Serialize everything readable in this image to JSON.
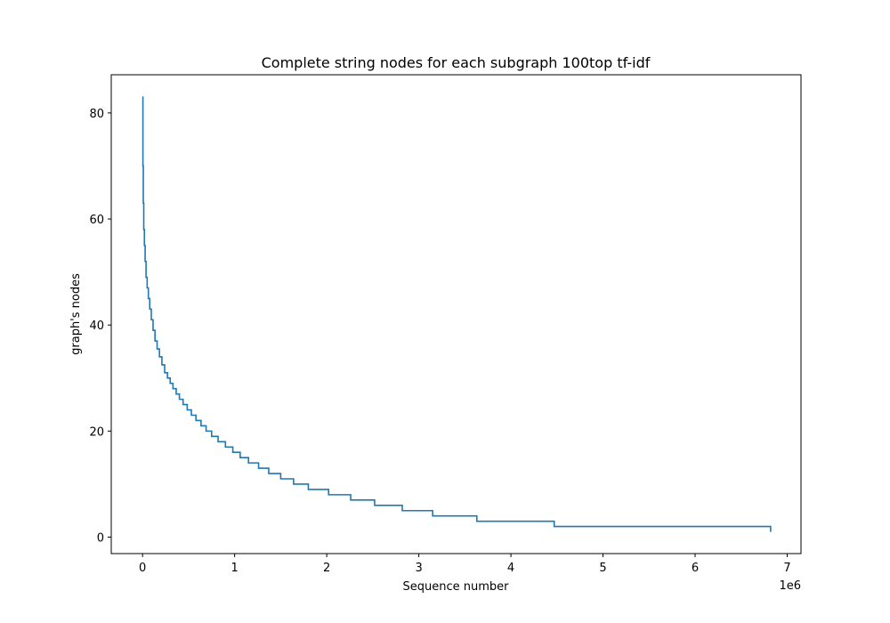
{
  "chart_data": {
    "type": "line",
    "title": "Complete string nodes for each subgraph 100top tf-idf",
    "xlabel": "Sequence number",
    "ylabel": "graph's nodes",
    "x_offset_label": "1e6",
    "xlim": [
      -0.34,
      7.15
    ],
    "ylim": [
      -3.1,
      87.2
    ],
    "xticks": [
      0,
      1,
      2,
      3,
      4,
      5,
      6,
      7
    ],
    "yticks": [
      0,
      20,
      40,
      60,
      80
    ],
    "grid": false,
    "line_color": "#1f77b4",
    "series": [
      {
        "step": "post",
        "x": [
          0,
          0.004,
          0.008,
          0.013,
          0.02,
          0.028,
          0.038,
          0.05,
          0.063,
          0.078,
          0.095,
          0.114,
          0.135,
          0.158,
          0.183,
          0.21,
          0.24,
          0.27,
          0.3,
          0.33,
          0.365,
          0.4,
          0.44,
          0.485,
          0.53,
          0.58,
          0.635,
          0.69,
          0.75,
          0.82,
          0.9,
          0.98,
          1.06,
          1.15,
          1.26,
          1.37,
          1.5,
          1.64,
          1.8,
          2.02,
          2.26,
          2.52,
          2.82,
          3.15,
          3.63,
          4.47,
          6.82
        ],
        "y": [
          83,
          70,
          63,
          58,
          55,
          52,
          49,
          47,
          45,
          43,
          41,
          39,
          37,
          35.5,
          34,
          32.5,
          31,
          30,
          29,
          28,
          27,
          26,
          25,
          24,
          23,
          22,
          21,
          20,
          19,
          18,
          17,
          16,
          15,
          14,
          13,
          12,
          11,
          10,
          9,
          8,
          7,
          6,
          5,
          4,
          3,
          2,
          1
        ]
      }
    ]
  }
}
